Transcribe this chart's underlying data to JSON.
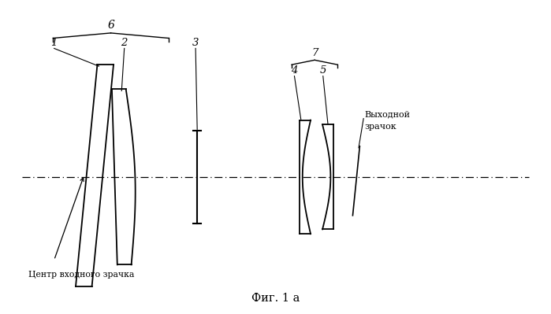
{
  "fig_width": 6.99,
  "fig_height": 3.99,
  "dpi": 100,
  "bg_color": "#ffffff",
  "lc": "#000000",
  "oy": 0.435,
  "title": "Фиг. 1 а",
  "label_center": "Центр входного зрачка",
  "label_exit_line1": "Выходной",
  "label_exit_line2": "зрачок"
}
